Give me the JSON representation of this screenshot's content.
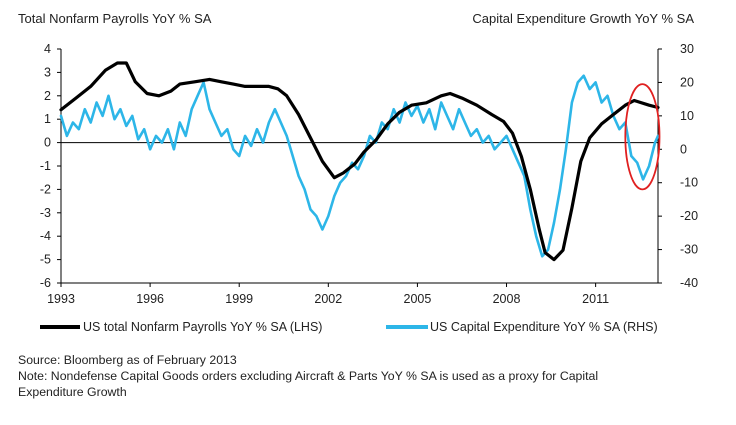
{
  "chart_data": {
    "type": "line",
    "left_title": "Total Nonfarm Payrolls YoY % SA",
    "right_title": "Capital Expenditure Growth YoY % SA",
    "x_ticks": [
      "1993",
      "1996",
      "1999",
      "2002",
      "2005",
      "2008",
      "2011"
    ],
    "x_range": [
      1993.0,
      2013.1
    ],
    "y_left": {
      "range": [
        -6,
        4
      ],
      "ticks": [
        "4",
        "3",
        "2",
        "1",
        "0",
        "-1",
        "-2",
        "-3",
        "-4",
        "-5",
        "-6"
      ]
    },
    "y_right": {
      "range": [
        -40,
        30
      ],
      "ticks": [
        "30",
        "20",
        "10",
        "0",
        "-10",
        "-20",
        "-30",
        "-40"
      ]
    },
    "grid": false,
    "legend_position": "bottom",
    "series": [
      {
        "name": "US total Nonfarm Payrolls YoY % SA (LHS)",
        "axis": "left",
        "color": "#000000",
        "points": [
          [
            1993.0,
            1.4
          ],
          [
            1993.5,
            1.9
          ],
          [
            1994.0,
            2.4
          ],
          [
            1994.5,
            3.1
          ],
          [
            1994.9,
            3.4
          ],
          [
            1995.2,
            3.4
          ],
          [
            1995.5,
            2.6
          ],
          [
            1995.9,
            2.1
          ],
          [
            1996.3,
            2.0
          ],
          [
            1996.7,
            2.2
          ],
          [
            1997.0,
            2.5
          ],
          [
            1997.5,
            2.6
          ],
          [
            1998.0,
            2.7
          ],
          [
            1998.4,
            2.6
          ],
          [
            1998.8,
            2.5
          ],
          [
            1999.2,
            2.4
          ],
          [
            1999.6,
            2.4
          ],
          [
            2000.0,
            2.4
          ],
          [
            2000.3,
            2.3
          ],
          [
            2000.6,
            2.0
          ],
          [
            2001.0,
            1.2
          ],
          [
            2001.4,
            0.2
          ],
          [
            2001.8,
            -0.8
          ],
          [
            2002.2,
            -1.5
          ],
          [
            2002.5,
            -1.3
          ],
          [
            2002.9,
            -0.9
          ],
          [
            2003.2,
            -0.4
          ],
          [
            2003.6,
            0.1
          ],
          [
            2004.0,
            0.8
          ],
          [
            2004.4,
            1.3
          ],
          [
            2004.8,
            1.6
          ],
          [
            2005.3,
            1.7
          ],
          [
            2005.8,
            2.0
          ],
          [
            2006.1,
            2.1
          ],
          [
            2006.5,
            1.9
          ],
          [
            2007.0,
            1.6
          ],
          [
            2007.5,
            1.2
          ],
          [
            2007.9,
            0.9
          ],
          [
            2008.2,
            0.4
          ],
          [
            2008.5,
            -0.6
          ],
          [
            2008.8,
            -2.0
          ],
          [
            2009.1,
            -3.7
          ],
          [
            2009.3,
            -4.7
          ],
          [
            2009.6,
            -5.0
          ],
          [
            2009.9,
            -4.6
          ],
          [
            2010.2,
            -2.8
          ],
          [
            2010.5,
            -0.8
          ],
          [
            2010.8,
            0.2
          ],
          [
            2011.2,
            0.8
          ],
          [
            2011.6,
            1.2
          ],
          [
            2012.0,
            1.6
          ],
          [
            2012.3,
            1.8
          ],
          [
            2012.8,
            1.6
          ],
          [
            2013.1,
            1.5
          ]
        ]
      },
      {
        "name": "US Capital Expenditure YoY % SA (RHS)",
        "axis": "right",
        "color": "#2db6e8",
        "points": [
          [
            1993.0,
            10
          ],
          [
            1993.2,
            4
          ],
          [
            1993.4,
            8
          ],
          [
            1993.6,
            6
          ],
          [
            1993.8,
            12
          ],
          [
            1994.0,
            8
          ],
          [
            1994.2,
            14
          ],
          [
            1994.4,
            10
          ],
          [
            1994.6,
            16
          ],
          [
            1994.8,
            9
          ],
          [
            1995.0,
            12
          ],
          [
            1995.2,
            7
          ],
          [
            1995.4,
            10
          ],
          [
            1995.6,
            3
          ],
          [
            1995.8,
            6
          ],
          [
            1996.0,
            0
          ],
          [
            1996.2,
            4
          ],
          [
            1996.4,
            2
          ],
          [
            1996.6,
            6
          ],
          [
            1996.8,
            0
          ],
          [
            1997.0,
            8
          ],
          [
            1997.2,
            4
          ],
          [
            1997.4,
            12
          ],
          [
            1997.6,
            16
          ],
          [
            1997.8,
            20
          ],
          [
            1998.0,
            12
          ],
          [
            1998.2,
            8
          ],
          [
            1998.4,
            4
          ],
          [
            1998.6,
            6
          ],
          [
            1998.8,
            0
          ],
          [
            1999.0,
            -2
          ],
          [
            1999.2,
            4
          ],
          [
            1999.4,
            1
          ],
          [
            1999.6,
            6
          ],
          [
            1999.8,
            2
          ],
          [
            2000.0,
            8
          ],
          [
            2000.2,
            12
          ],
          [
            2000.4,
            8
          ],
          [
            2000.6,
            4
          ],
          [
            2000.8,
            -2
          ],
          [
            2001.0,
            -8
          ],
          [
            2001.2,
            -12
          ],
          [
            2001.4,
            -18
          ],
          [
            2001.6,
            -20
          ],
          [
            2001.8,
            -24
          ],
          [
            2002.0,
            -20
          ],
          [
            2002.2,
            -14
          ],
          [
            2002.4,
            -10
          ],
          [
            2002.6,
            -8
          ],
          [
            2002.8,
            -4
          ],
          [
            2003.0,
            -6
          ],
          [
            2003.2,
            -2
          ],
          [
            2003.4,
            4
          ],
          [
            2003.6,
            2
          ],
          [
            2003.8,
            8
          ],
          [
            2004.0,
            6
          ],
          [
            2004.2,
            12
          ],
          [
            2004.4,
            8
          ],
          [
            2004.6,
            14
          ],
          [
            2004.8,
            10
          ],
          [
            2005.0,
            13
          ],
          [
            2005.2,
            8
          ],
          [
            2005.4,
            12
          ],
          [
            2005.6,
            6
          ],
          [
            2005.8,
            14
          ],
          [
            2006.0,
            10
          ],
          [
            2006.2,
            6
          ],
          [
            2006.4,
            12
          ],
          [
            2006.6,
            8
          ],
          [
            2006.8,
            4
          ],
          [
            2007.0,
            6
          ],
          [
            2007.2,
            2
          ],
          [
            2007.4,
            4
          ],
          [
            2007.6,
            0
          ],
          [
            2007.8,
            2
          ],
          [
            2008.0,
            4
          ],
          [
            2008.2,
            0
          ],
          [
            2008.4,
            -4
          ],
          [
            2008.6,
            -8
          ],
          [
            2008.8,
            -18
          ],
          [
            2009.0,
            -26
          ],
          [
            2009.2,
            -32
          ],
          [
            2009.4,
            -30
          ],
          [
            2009.6,
            -22
          ],
          [
            2009.8,
            -12
          ],
          [
            2010.0,
            0
          ],
          [
            2010.2,
            14
          ],
          [
            2010.4,
            20
          ],
          [
            2010.6,
            22
          ],
          [
            2010.8,
            18
          ],
          [
            2011.0,
            20
          ],
          [
            2011.2,
            14
          ],
          [
            2011.4,
            16
          ],
          [
            2011.6,
            10
          ],
          [
            2011.8,
            6
          ],
          [
            2012.0,
            8
          ],
          [
            2012.2,
            -2
          ],
          [
            2012.4,
            -4
          ],
          [
            2012.6,
            -9
          ],
          [
            2012.8,
            -5
          ],
          [
            2013.0,
            2
          ],
          [
            2013.1,
            4
          ]
        ]
      }
    ],
    "annotations": [
      {
        "type": "ellipse",
        "color": "#e02020",
        "x_range": [
          2012.0,
          2013.15
        ],
        "y_left_range": [
          -2.0,
          2.5
        ]
      }
    ]
  },
  "footer": {
    "source": "Source: Bloomberg as of February 2013",
    "note_line1": "Note: Nondefense Capital Goods orders excluding Aircraft & Parts YoY % SA is used as a proxy for Capital",
    "note_line2": "Expenditure Growth"
  }
}
